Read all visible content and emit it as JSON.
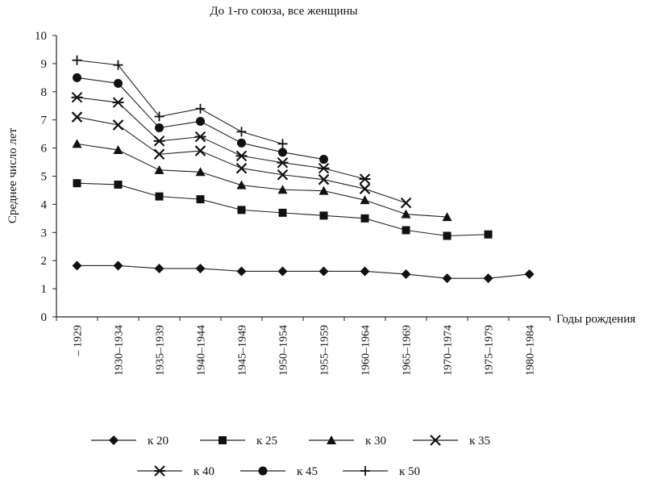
{
  "chart_data": {
    "type": "line",
    "title": "До 1-го союза, все женщины",
    "xlabel": "Годы рождения",
    "ylabel": "Среднее число лет",
    "ylim": [
      0,
      10
    ],
    "yticks": [
      "0",
      "1",
      "2",
      "3",
      "4",
      "5",
      "6",
      "7",
      "8",
      "9",
      "10"
    ],
    "categories": [
      "– 1929",
      "1930–1934",
      "1935–1939",
      "1940–1944",
      "1945–1949",
      "1950–1954",
      "1955–1959",
      "1960–1964",
      "1965–1969",
      "1970–1974",
      "1975–1979",
      "1980–1984"
    ],
    "legend_position": "bottom",
    "grid": false,
    "series": [
      {
        "name": "к 20",
        "marker": "diamond",
        "values": [
          1.82,
          1.82,
          1.72,
          1.72,
          1.62,
          1.62,
          1.62,
          1.62,
          1.52,
          1.37,
          1.37,
          1.52
        ]
      },
      {
        "name": "к 25",
        "marker": "square",
        "values": [
          4.75,
          4.7,
          4.28,
          4.18,
          3.8,
          3.7,
          3.6,
          3.5,
          3.08,
          2.88,
          2.93,
          null
        ]
      },
      {
        "name": "к 30",
        "marker": "triangle",
        "values": [
          6.15,
          5.93,
          5.22,
          5.15,
          4.68,
          4.52,
          4.48,
          4.15,
          3.65,
          3.55,
          null,
          null
        ]
      },
      {
        "name": "к 35",
        "marker": "x",
        "values": [
          7.1,
          6.82,
          5.78,
          5.9,
          5.28,
          5.05,
          4.88,
          4.55,
          4.05,
          null,
          null,
          null
        ]
      },
      {
        "name": "к 40",
        "marker": "star",
        "values": [
          7.8,
          7.62,
          6.25,
          6.4,
          5.72,
          5.48,
          5.28,
          4.9,
          null,
          null,
          null,
          null
        ]
      },
      {
        "name": "к 45",
        "marker": "circle",
        "values": [
          8.5,
          8.3,
          6.72,
          6.95,
          6.18,
          5.85,
          5.6,
          null,
          null,
          null,
          null,
          null
        ]
      },
      {
        "name": "к 50",
        "marker": "plus",
        "values": [
          9.12,
          8.95,
          7.12,
          7.4,
          6.58,
          6.15,
          null,
          null,
          null,
          null,
          null,
          null
        ]
      }
    ]
  }
}
